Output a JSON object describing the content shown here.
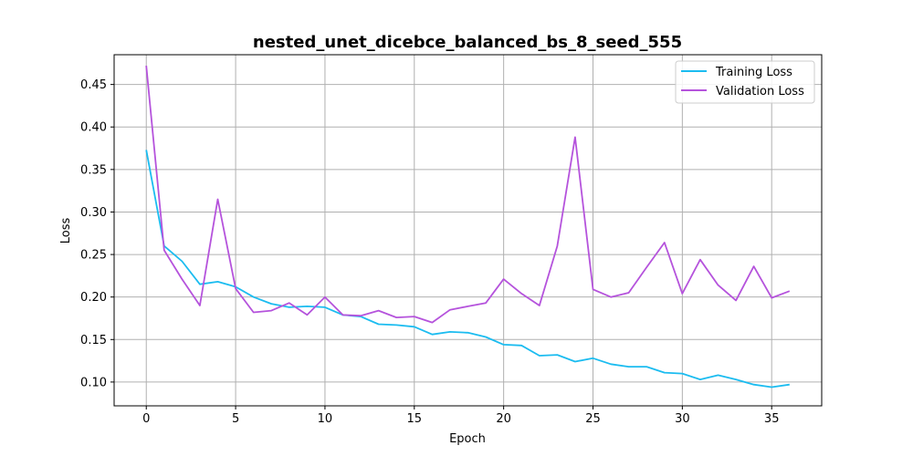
{
  "chart_data": {
    "type": "line",
    "title": "nested_unet_dicebce_balanced_bs_8_seed_555",
    "xlabel": "Epoch",
    "ylabel": "Loss",
    "xlim": [
      -1.8,
      37.8
    ],
    "ylim": [
      0.072,
      0.485
    ],
    "xticks": [
      0,
      5,
      10,
      15,
      20,
      25,
      30,
      35
    ],
    "yticks": [
      0.1,
      0.15,
      0.2,
      0.25,
      0.3,
      0.35,
      0.4,
      0.45
    ],
    "xtick_labels": [
      "0",
      "5",
      "10",
      "15",
      "20",
      "25",
      "30",
      "35"
    ],
    "ytick_labels": [
      "0.10",
      "0.15",
      "0.20",
      "0.25",
      "0.30",
      "0.35",
      "0.40",
      "0.45"
    ],
    "grid": true,
    "legend_position": "top-right",
    "x": [
      0,
      1,
      2,
      3,
      4,
      5,
      6,
      7,
      8,
      9,
      10,
      11,
      12,
      13,
      14,
      15,
      16,
      17,
      18,
      19,
      20,
      21,
      22,
      23,
      24,
      25,
      26,
      27,
      28,
      29,
      30,
      31,
      32,
      33,
      34,
      35,
      36
    ],
    "series": [
      {
        "name": "Training Loss",
        "color": "#1bbcf0",
        "values": [
          0.373,
          0.26,
          0.242,
          0.215,
          0.218,
          0.212,
          0.2,
          0.192,
          0.188,
          0.189,
          0.188,
          0.179,
          0.177,
          0.168,
          0.167,
          0.165,
          0.156,
          0.159,
          0.158,
          0.153,
          0.144,
          0.143,
          0.131,
          0.132,
          0.124,
          0.128,
          0.121,
          0.118,
          0.118,
          0.111,
          0.11,
          0.103,
          0.108,
          0.103,
          0.097,
          0.094,
          0.097
        ]
      },
      {
        "name": "Validation Loss",
        "color": "#b553dc",
        "values": [
          0.472,
          0.255,
          0.221,
          0.19,
          0.315,
          0.21,
          0.182,
          0.184,
          0.193,
          0.179,
          0.2,
          0.179,
          0.178,
          0.184,
          0.176,
          0.177,
          0.17,
          0.185,
          0.189,
          0.193,
          0.221,
          0.204,
          0.19,
          0.26,
          0.388,
          0.209,
          0.2,
          0.205,
          0.235,
          0.264,
          0.204,
          0.244,
          0.214,
          0.196,
          0.236,
          0.199,
          0.207
        ]
      }
    ]
  }
}
